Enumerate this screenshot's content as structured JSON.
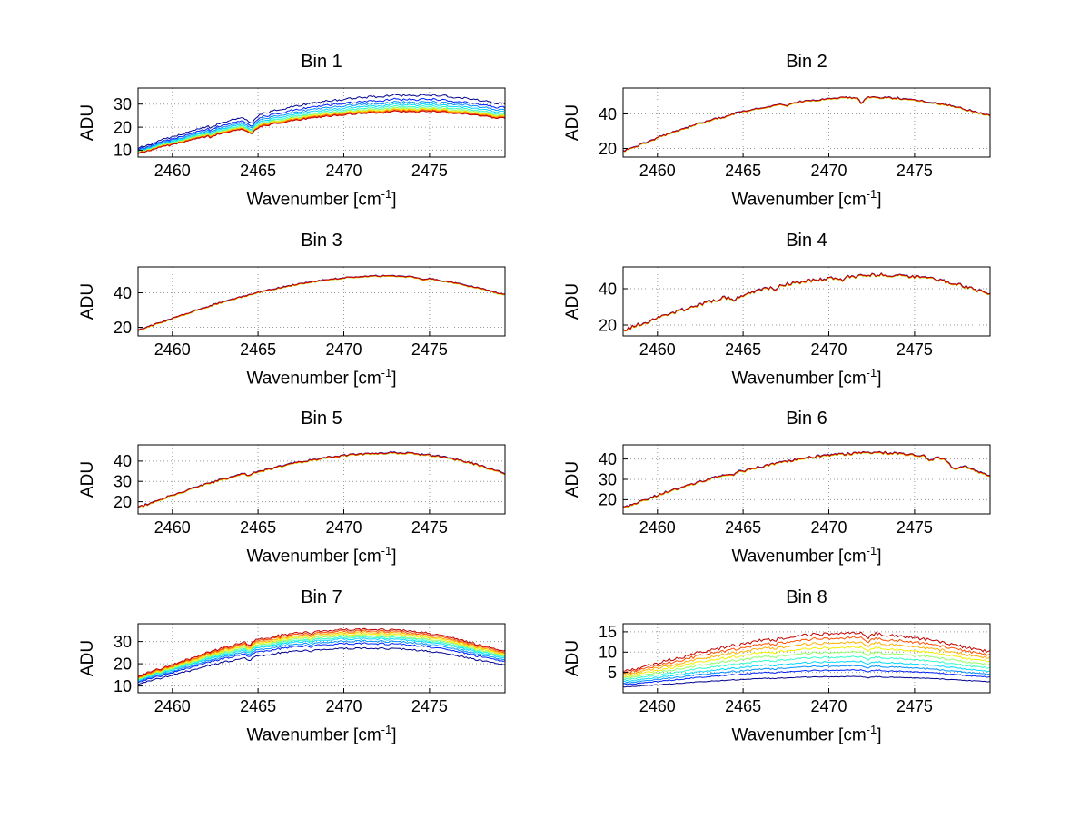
{
  "figure": {
    "background": "#ffffff"
  },
  "labels": {
    "ylabel": "ADU",
    "xlabel_pre": "Wavenumber [cm",
    "xlabel_sup": "-1",
    "xlabel_post": "]"
  },
  "series_colors": [
    "#00008f",
    "#0020ff",
    "#0090ff",
    "#00d8ff",
    "#30ffc8",
    "#90ff68",
    "#f0f000",
    "#ffb000",
    "#ff5000",
    "#c00000"
  ],
  "x_ctrl": [
    2458,
    2459,
    2460,
    2461,
    2462,
    2463,
    2464,
    2465,
    2466,
    2467,
    2468,
    2469,
    2470,
    2471,
    2472,
    2473,
    2474,
    2475,
    2476,
    2477,
    2478,
    2479,
    2480
  ],
  "chart_data": [
    {
      "type": "line",
      "title": "Bin 1",
      "xlabel": "Wavenumber [cm⁻¹]",
      "ylabel": "ADU",
      "xlim": [
        2458,
        2479.4
      ],
      "ylim": [
        7,
        37
      ],
      "xticks": [
        2460,
        2465,
        2470,
        2475
      ],
      "yticks": [
        10,
        20,
        30
      ],
      "base": [
        11.0,
        13.4,
        15.8,
        18.0,
        20.2,
        22.2,
        24.0,
        25.4,
        27.2,
        28.8,
        30.2,
        31.2,
        32.2,
        33.0,
        33.2,
        34.0,
        33.6,
        34.0,
        33.4,
        32.6,
        31.4,
        30.4,
        30.0
      ],
      "scales": [
        1.0,
        0.945,
        0.91,
        0.88,
        0.855,
        0.835,
        0.82,
        0.81,
        0.8,
        0.79
      ],
      "offsets": [
        0,
        0,
        0,
        0,
        0,
        0,
        0,
        0,
        0,
        0
      ],
      "noise": 0.45,
      "spikes": [
        {
          "x": 2464.6,
          "depth": 3.2,
          "width": 0.2
        },
        {
          "x": 2462.3,
          "depth": 1.0,
          "width": 0.12
        }
      ]
    },
    {
      "type": "line",
      "title": "Bin 2",
      "xlabel": "Wavenumber [cm⁻¹]",
      "ylabel": "ADU",
      "xlim": [
        2458,
        2479.4
      ],
      "ylim": [
        15,
        55
      ],
      "xticks": [
        2460,
        2465,
        2470,
        2475
      ],
      "yticks": [
        20,
        40
      ],
      "base": [
        18.0,
        22.0,
        26.0,
        29.5,
        33.0,
        36.0,
        38.8,
        41.2,
        43.2,
        45.0,
        46.5,
        47.7,
        48.6,
        49.2,
        49.5,
        49.4,
        48.9,
        48.0,
        46.6,
        44.7,
        42.4,
        39.8,
        38.0
      ],
      "scales": [
        1,
        1,
        1,
        1,
        1,
        1,
        1,
        1,
        1,
        1
      ],
      "offsets": [
        0.3,
        0.2,
        0.1,
        0.0,
        -0.1,
        -0.15,
        -0.1,
        0.0,
        0.1,
        0.2
      ],
      "noise": 0.5,
      "spikes": [
        {
          "x": 2463.9,
          "depth": 1.2,
          "width": 0.13
        },
        {
          "x": 2467.6,
          "depth": 1.6,
          "width": 0.12
        },
        {
          "x": 2471.9,
          "depth": 3.2,
          "width": 0.12
        }
      ]
    },
    {
      "type": "line",
      "title": "Bin 3",
      "xlabel": "Wavenumber [cm⁻¹]",
      "ylabel": "ADU",
      "xlim": [
        2458,
        2479.4
      ],
      "ylim": [
        15,
        55
      ],
      "xticks": [
        2460,
        2465,
        2470,
        2475
      ],
      "yticks": [
        20,
        40
      ],
      "base": [
        18.0,
        21.5,
        25.0,
        28.4,
        31.6,
        34.6,
        37.4,
        40.0,
        42.3,
        44.3,
        46.0,
        47.4,
        48.5,
        49.2,
        49.6,
        49.5,
        49.0,
        48.0,
        46.5,
        44.5,
        42.2,
        39.6,
        37.5
      ],
      "scales": [
        1,
        1,
        1,
        1,
        1,
        1,
        1,
        1,
        1,
        1
      ],
      "offsets": [
        0.3,
        0.2,
        0.1,
        0.0,
        -0.1,
        -0.15,
        -0.1,
        0.0,
        0.1,
        0.2
      ],
      "noise": 0.35,
      "spikes": [
        {
          "x": 2474.6,
          "depth": 1.0,
          "width": 0.12
        }
      ]
    },
    {
      "type": "line",
      "title": "Bin 4",
      "xlabel": "Wavenumber [cm⁻¹]",
      "ylabel": "ADU",
      "xlim": [
        2458,
        2479.4
      ],
      "ylim": [
        14,
        52
      ],
      "xticks": [
        2460,
        2465,
        2470,
        2475
      ],
      "yticks": [
        20,
        40
      ],
      "base": [
        17.0,
        20.3,
        23.6,
        26.8,
        29.8,
        32.6,
        35.2,
        36.2,
        39.0,
        41.2,
        43.0,
        44.4,
        45.4,
        46.2,
        47.0,
        47.6,
        47.2,
        46.4,
        45.2,
        43.4,
        41.0,
        38.2,
        36.0
      ],
      "scales": [
        1,
        1,
        1,
        1,
        1,
        1,
        1,
        1,
        1,
        1
      ],
      "offsets": [
        0.3,
        0.2,
        0.1,
        0.0,
        -0.1,
        -0.15,
        -0.1,
        0.0,
        0.1,
        0.2
      ],
      "noise": 0.9,
      "spikes": [
        {
          "x": 2464.4,
          "depth": 2.2,
          "width": 0.18
        },
        {
          "x": 2466.9,
          "depth": 1.4,
          "width": 0.12
        },
        {
          "x": 2470.8,
          "depth": 1.4,
          "width": 0.1
        }
      ]
    },
    {
      "type": "line",
      "title": "Bin 5",
      "xlabel": "Wavenumber [cm⁻¹]",
      "ylabel": "ADU",
      "xlim": [
        2458,
        2479.4
      ],
      "ylim": [
        14,
        48
      ],
      "xticks": [
        2460,
        2465,
        2470,
        2475
      ],
      "yticks": [
        20,
        30,
        40
      ],
      "base": [
        17.0,
        20.0,
        23.0,
        25.8,
        28.6,
        31.0,
        33.2,
        34.6,
        36.8,
        38.6,
        40.2,
        41.6,
        42.6,
        43.4,
        43.8,
        44.0,
        43.6,
        42.8,
        41.6,
        39.8,
        37.4,
        34.6,
        32.5
      ],
      "scales": [
        1,
        1,
        1,
        1,
        1,
        1,
        1,
        1,
        1,
        1
      ],
      "offsets": [
        0.3,
        0.2,
        0.1,
        0.0,
        -0.1,
        -0.15,
        -0.1,
        0.0,
        0.1,
        0.2
      ],
      "noise": 0.45,
      "spikes": [
        {
          "x": 2464.5,
          "depth": 1.4,
          "width": 0.14
        }
      ]
    },
    {
      "type": "line",
      "title": "Bin 6",
      "xlabel": "Wavenumber [cm⁻¹]",
      "ylabel": "ADU",
      "xlim": [
        2458,
        2479.4
      ],
      "ylim": [
        13,
        47
      ],
      "xticks": [
        2460,
        2465,
        2470,
        2475
      ],
      "yticks": [
        20,
        30,
        40
      ],
      "base": [
        16.0,
        19.0,
        22.0,
        24.8,
        27.6,
        30.0,
        32.2,
        34.0,
        36.0,
        37.8,
        39.4,
        40.8,
        41.8,
        42.4,
        42.8,
        43.0,
        42.6,
        42.0,
        41.0,
        39.4,
        36.0,
        32.6,
        30.5
      ],
      "scales": [
        1,
        1,
        1,
        1,
        1,
        1,
        1,
        1,
        1,
        1
      ],
      "offsets": [
        0.3,
        0.2,
        0.1,
        0.0,
        -0.1,
        -0.15,
        -0.1,
        0.0,
        0.1,
        0.2
      ],
      "noise": 0.55,
      "spikes": [
        {
          "x": 2464.4,
          "depth": 1.2,
          "width": 0.14
        },
        {
          "x": 2475.9,
          "depth": 2.0,
          "width": 0.15
        },
        {
          "x": 2477.3,
          "depth": 3.5,
          "width": 0.22
        }
      ]
    },
    {
      "type": "line",
      "title": "Bin 7",
      "xlabel": "Wavenumber [cm⁻¹]",
      "ylabel": "ADU",
      "xlim": [
        2458,
        2479.4
      ],
      "ylim": [
        7,
        38
      ],
      "xticks": [
        2460,
        2465,
        2470,
        2475
      ],
      "yticks": [
        10,
        20,
        30
      ],
      "base": [
        14.5,
        17.0,
        19.6,
        22.2,
        24.8,
        27.2,
        29.2,
        30.8,
        32.4,
        33.6,
        34.4,
        35.0,
        35.4,
        35.6,
        35.4,
        35.2,
        34.6,
        33.6,
        32.2,
        30.4,
        28.2,
        26.4,
        25.2
      ],
      "scales": [
        0.76,
        0.82,
        0.85,
        0.88,
        0.9,
        0.92,
        0.94,
        0.96,
        0.98,
        1.0
      ],
      "offsets": [
        0,
        0,
        0,
        0,
        0,
        0,
        0,
        0,
        0,
        0
      ],
      "noise": 0.5,
      "spikes": [
        {
          "x": 2464.5,
          "depth": 1.4,
          "width": 0.14
        },
        {
          "x": 2468.1,
          "depth": 1.2,
          "width": 0.12
        }
      ]
    },
    {
      "type": "line",
      "title": "Bin 8",
      "xlabel": "Wavenumber [cm⁻¹]",
      "ylabel": "ADU",
      "xlim": [
        2458,
        2479.4
      ],
      "ylim": [
        0,
        17
      ],
      "xticks": [
        2460,
        2465,
        2470,
        2475
      ],
      "yticks": [
        5,
        10,
        15
      ],
      "base": [
        5.2,
        6.2,
        7.3,
        8.4,
        9.4,
        10.4,
        11.3,
        12.1,
        12.8,
        13.4,
        13.9,
        14.3,
        14.6,
        14.7,
        14.6,
        14.4,
        14.0,
        13.5,
        12.9,
        12.1,
        11.2,
        10.3,
        9.6
      ],
      "scales": [
        0.27,
        0.38,
        0.45,
        0.52,
        0.6,
        0.68,
        0.76,
        0.84,
        0.92,
        1.0
      ],
      "offsets": [
        0,
        0,
        0,
        0,
        0,
        0,
        0,
        0,
        0,
        0
      ],
      "noise": 0.35,
      "spikes": [
        {
          "x": 2472.3,
          "depth": 0.9,
          "width": 0.12
        },
        {
          "x": 2466.8,
          "depth": 0.5,
          "width": 0.1
        }
      ]
    }
  ]
}
